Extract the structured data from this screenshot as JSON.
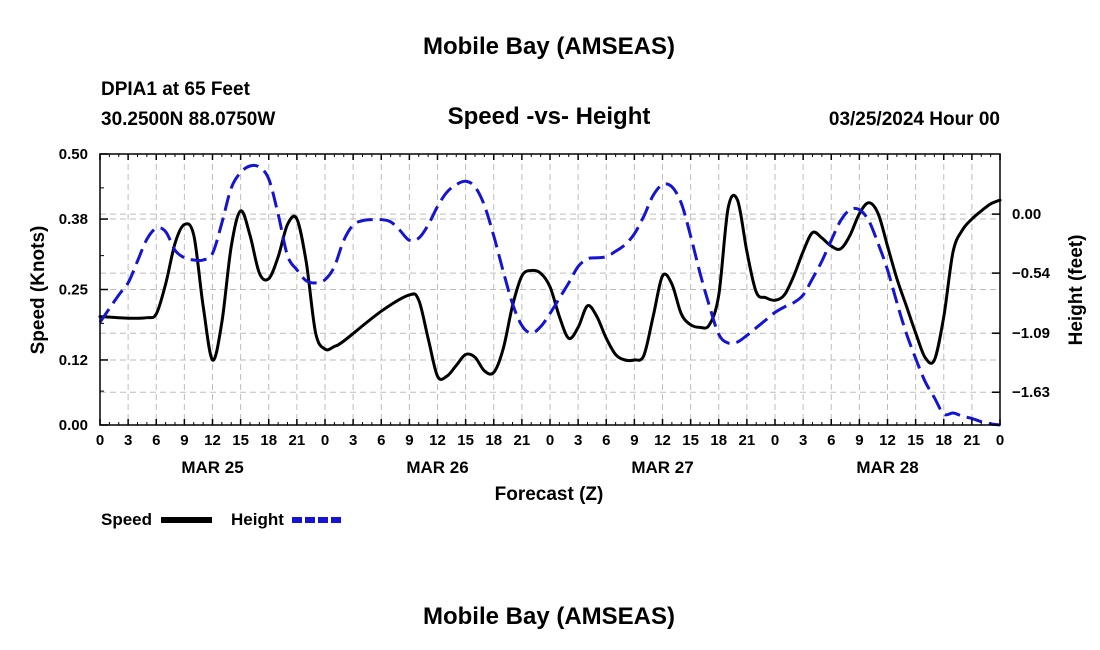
{
  "header": {
    "title": "Mobile Bay (AMSEAS)",
    "station": "DPIA1 at 65 Feet",
    "coords": "30.2500N  88.0750W",
    "subtitle": "Speed -vs- Height",
    "datetime": "03/25/2024 Hour 00"
  },
  "footer": {
    "title": "Mobile Bay (AMSEAS)"
  },
  "legend": {
    "speed_label": "Speed",
    "height_label": "Height"
  },
  "colors": {
    "speed": "#000000",
    "height": "#1414d2",
    "grid": "#bdbdbd"
  },
  "chart_data": {
    "type": "line",
    "title": "Speed -vs- Height",
    "xlabel": "Forecast (Z)",
    "ylabel": "Speed (Knots)",
    "y2label": "Height (feet)",
    "xlim": [
      0,
      96
    ],
    "ylim": [
      0,
      0.5
    ],
    "y2lim": [
      -1.93,
      0.55
    ],
    "xticks": [
      0,
      3,
      6,
      9,
      12,
      15,
      18,
      21,
      24,
      27,
      30,
      33,
      36,
      39,
      42,
      45,
      48,
      51,
      54,
      57,
      60,
      63,
      66,
      69,
      72,
      75,
      78,
      81,
      84,
      87,
      90,
      93,
      96
    ],
    "xtick_labels": [
      "0",
      "3",
      "6",
      "9",
      "12",
      "15",
      "18",
      "21",
      "0",
      "3",
      "6",
      "9",
      "12",
      "15",
      "18",
      "21",
      "0",
      "3",
      "6",
      "9",
      "12",
      "15",
      "18",
      "21",
      "0",
      "3",
      "6",
      "9",
      "12",
      "15",
      "18",
      "21",
      "0"
    ],
    "day_labels": [
      {
        "x": 12,
        "label": "MAR 25"
      },
      {
        "x": 36,
        "label": "MAR 26"
      },
      {
        "x": 60,
        "label": "MAR 27"
      },
      {
        "x": 84,
        "label": "MAR 28"
      }
    ],
    "yticks": [
      0.0,
      0.12,
      0.25,
      0.38,
      0.5
    ],
    "ytick_labels": [
      "0.00",
      "0.12",
      "0.25",
      "0.38",
      "0.50"
    ],
    "y2ticks": [
      0.0,
      -0.54,
      -1.09,
      -1.63
    ],
    "y2tick_labels": [
      "0.00",
      "−0.54",
      "−1.09",
      "−1.63"
    ],
    "grid": true,
    "series": [
      {
        "name": "Speed",
        "axis": "left",
        "style": "solid",
        "x": [
          0,
          3,
          5,
          6,
          7,
          8,
          9,
          10,
          11,
          12,
          13,
          14,
          15,
          16,
          17,
          18,
          19,
          20,
          21,
          22,
          23,
          24,
          25,
          26,
          30,
          33,
          34,
          35,
          36,
          37,
          38,
          39,
          40,
          41,
          42,
          43,
          44,
          45,
          46,
          47,
          48,
          49,
          50,
          51,
          52,
          53,
          54,
          55,
          56,
          57,
          58,
          59,
          60,
          61,
          62,
          63,
          64,
          65,
          66,
          67,
          68,
          69,
          70,
          71,
          72,
          73,
          74,
          75,
          76,
          77,
          78,
          79,
          80,
          81,
          82,
          83,
          84,
          85,
          86,
          87,
          88,
          89,
          90,
          91,
          92,
          93,
          94,
          95,
          96
        ],
        "values": [
          0.2,
          0.197,
          0.198,
          0.205,
          0.26,
          0.335,
          0.37,
          0.35,
          0.22,
          0.12,
          0.19,
          0.33,
          0.395,
          0.35,
          0.28,
          0.27,
          0.31,
          0.37,
          0.38,
          0.3,
          0.17,
          0.14,
          0.145,
          0.155,
          0.21,
          0.24,
          0.23,
          0.16,
          0.09,
          0.09,
          0.11,
          0.13,
          0.125,
          0.1,
          0.097,
          0.14,
          0.22,
          0.275,
          0.285,
          0.28,
          0.255,
          0.2,
          0.16,
          0.18,
          0.22,
          0.2,
          0.16,
          0.13,
          0.12,
          0.12,
          0.128,
          0.2,
          0.275,
          0.26,
          0.205,
          0.185,
          0.18,
          0.185,
          0.24,
          0.4,
          0.415,
          0.32,
          0.245,
          0.235,
          0.23,
          0.24,
          0.275,
          0.32,
          0.355,
          0.345,
          0.33,
          0.325,
          0.35,
          0.39,
          0.41,
          0.39,
          0.33,
          0.27,
          0.22,
          0.17,
          0.125,
          0.12,
          0.2,
          0.32,
          0.36,
          0.38,
          0.395,
          0.408,
          0.415
        ]
      },
      {
        "name": "Height",
        "axis": "right",
        "style": "dashed",
        "x": [
          0,
          2,
          3,
          4,
          5,
          6,
          7,
          8,
          9,
          10,
          11,
          12,
          13,
          14,
          15,
          16,
          17,
          18,
          19,
          20,
          21,
          22,
          23,
          24,
          25,
          26,
          27,
          28,
          29,
          30,
          31,
          32,
          33,
          34,
          35,
          36,
          37,
          38,
          39,
          40,
          41,
          42,
          43,
          44,
          45,
          46,
          47,
          48,
          49,
          50,
          51,
          52,
          53,
          54,
          55,
          56,
          57,
          58,
          59,
          60,
          61,
          62,
          63,
          64,
          65,
          66,
          67,
          68,
          69,
          70,
          71,
          72,
          73,
          74,
          75,
          76,
          77,
          78,
          79,
          80,
          81,
          82,
          83,
          84,
          85,
          86,
          87,
          88,
          89,
          90,
          91,
          92,
          93,
          94,
          95,
          96
        ],
        "values": [
          -0.99,
          -0.74,
          -0.63,
          -0.43,
          -0.23,
          -0.13,
          -0.16,
          -0.33,
          -0.4,
          -0.42,
          -0.42,
          -0.36,
          -0.08,
          0.24,
          0.38,
          0.44,
          0.43,
          0.32,
          0.0,
          -0.38,
          -0.51,
          -0.61,
          -0.63,
          -0.6,
          -0.48,
          -0.24,
          -0.1,
          -0.06,
          -0.05,
          -0.05,
          -0.07,
          -0.15,
          -0.24,
          -0.22,
          -0.1,
          0.07,
          0.2,
          0.27,
          0.3,
          0.25,
          0.08,
          -0.2,
          -0.52,
          -0.82,
          -1.02,
          -1.09,
          -1.03,
          -0.91,
          -0.77,
          -0.63,
          -0.48,
          -0.41,
          -0.4,
          -0.39,
          -0.34,
          -0.28,
          -0.18,
          -0.02,
          0.17,
          0.27,
          0.25,
          0.1,
          -0.2,
          -0.54,
          -0.84,
          -1.1,
          -1.18,
          -1.17,
          -1.11,
          -1.04,
          -0.97,
          -0.9,
          -0.85,
          -0.81,
          -0.74,
          -0.59,
          -0.43,
          -0.24,
          -0.06,
          0.04,
          0.04,
          -0.06,
          -0.27,
          -0.51,
          -0.81,
          -1.09,
          -1.32,
          -1.53,
          -1.68,
          -1.83,
          -1.82,
          -1.85,
          -1.87,
          -1.9,
          -1.92,
          -1.93
        ]
      }
    ]
  }
}
